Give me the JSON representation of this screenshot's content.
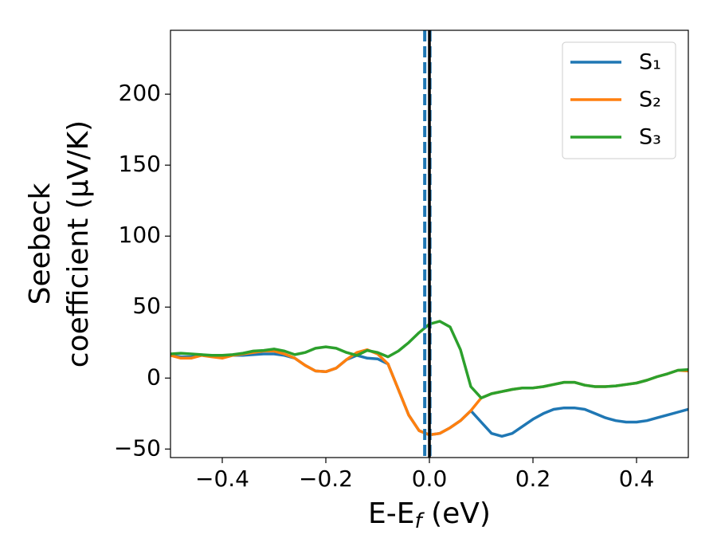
{
  "chart_data": {
    "type": "line",
    "xlabel": {
      "main": "E-E",
      "sub": "f",
      "unit": " (eV)"
    },
    "ylabel": [
      "Seebeck",
      "coefficient  (μV/K)"
    ],
    "xlim": [
      -0.5,
      0.5
    ],
    "ylim": [
      -56,
      245
    ],
    "xticks": [
      {
        "value": -0.4,
        "label": "−0.4"
      },
      {
        "value": -0.2,
        "label": "−0.2"
      },
      {
        "value": 0.0,
        "label": "0.0"
      },
      0.2,
      0.4
    ],
    "yticks": [
      {
        "value": -50,
        "label": "−50"
      },
      0,
      50,
      100,
      150,
      200
    ],
    "legend": "upper right",
    "vlines": [
      {
        "x": -0.009,
        "color": "#1f77b4",
        "style": "dashed"
      },
      {
        "x": 0.001,
        "color": "#1f77b4",
        "style": "dashed"
      },
      {
        "x": 0,
        "color": "#000000",
        "style": "solid"
      }
    ],
    "x": [
      -0.5,
      -0.48,
      -0.46,
      -0.44,
      -0.42,
      -0.4,
      -0.38,
      -0.36,
      -0.34,
      -0.32,
      -0.3,
      -0.28,
      -0.26,
      -0.24,
      -0.22,
      -0.2,
      -0.18,
      -0.16,
      -0.14,
      -0.12,
      -0.1,
      -0.08,
      -0.06,
      -0.04,
      -0.02,
      0,
      0.02,
      0.04,
      0.06,
      0.08,
      0.1,
      0.12,
      0.14,
      0.16,
      0.18,
      0.2,
      0.22,
      0.24,
      0.26,
      0.28,
      0.3,
      0.32,
      0.34,
      0.36,
      0.38,
      0.4,
      0.42,
      0.44,
      0.46,
      0.48,
      0.5
    ],
    "series": [
      {
        "name": "S₁",
        "color": "#1f77b4",
        "values": [
          16,
          15,
          15,
          16,
          16,
          16,
          16,
          16,
          16.5,
          17,
          17,
          16,
          14,
          9,
          5,
          4.5,
          7,
          13,
          16,
          14,
          13.5,
          10,
          -8,
          -26,
          -37,
          -40,
          -39,
          -35,
          -30,
          -23,
          -31,
          -39,
          -41,
          -39,
          -34,
          -29,
          -25,
          -22,
          -21,
          -21,
          -22,
          -25,
          -28,
          -30,
          -31,
          -31,
          -30,
          -28,
          -26,
          -24,
          -22
        ]
      },
      {
        "name": "S₂",
        "color": "#ff7f0e",
        "values": [
          16,
          14,
          14,
          16,
          15,
          14,
          16,
          17,
          18,
          19,
          19,
          17,
          14,
          9,
          5,
          4.5,
          7,
          13,
          18,
          20,
          17,
          10,
          -8,
          -26,
          -37,
          -40,
          -39,
          -35,
          -30,
          -23,
          -14,
          -11,
          -9.5,
          -8,
          -7,
          -7,
          -6,
          -4.5,
          -3,
          -3,
          -5,
          -6,
          -6,
          -5.5,
          -4.5,
          -3.5,
          -1.5,
          1,
          3,
          5.5,
          5
        ]
      },
      {
        "name": "S₃",
        "color": "#2ca02c",
        "values": [
          17,
          17.5,
          17,
          16.5,
          16,
          16,
          16.5,
          17.5,
          19,
          19.5,
          20.5,
          19,
          16.5,
          18,
          21,
          22,
          21,
          18,
          16,
          19.5,
          18,
          15,
          19,
          25,
          32,
          38,
          40,
          36,
          20,
          -6,
          -14,
          -11,
          -9.5,
          -8,
          -7,
          -7,
          -6,
          -4.5,
          -3,
          -3,
          -5,
          -6,
          -6,
          -5.5,
          -4.5,
          -3.5,
          -1.5,
          1,
          3,
          5.5,
          6
        ]
      }
    ]
  }
}
